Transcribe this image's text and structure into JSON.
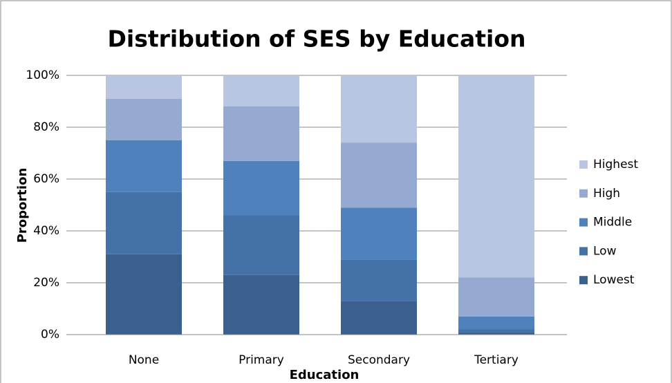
{
  "chart_data": {
    "type": "stacked_bar",
    "title": "Distribution of SES by Education",
    "x_label": "Education",
    "y_label": "Proportion",
    "categories": [
      "None",
      "Primary",
      "Secondary",
      "Tertiary"
    ],
    "series": [
      {
        "name": "Lowest",
        "color": "#3b5f8e",
        "values": [
          31,
          23,
          13,
          1
        ]
      },
      {
        "name": "Low",
        "color": "#4472a8",
        "values": [
          24,
          23,
          16,
          1
        ]
      },
      {
        "name": "Middle",
        "color": "#4f81bd",
        "values": [
          20,
          21,
          20,
          5
        ]
      },
      {
        "name": "High",
        "color": "#95a9d1",
        "values": [
          16,
          21,
          25,
          15
        ]
      },
      {
        "name": "Highest",
        "color": "#b9c6e1",
        "values": [
          9,
          12,
          26,
          78
        ]
      }
    ],
    "ylim": [
      0,
      100
    ],
    "yticks": [
      {
        "value": 0,
        "label": "0%"
      },
      {
        "value": 20,
        "label": "20%"
      },
      {
        "value": 40,
        "label": "40%"
      },
      {
        "value": 60,
        "label": "60%"
      },
      {
        "value": 80,
        "label": "80%"
      },
      {
        "value": 100,
        "label": "100%"
      }
    ],
    "grid": true,
    "legend": "right"
  }
}
